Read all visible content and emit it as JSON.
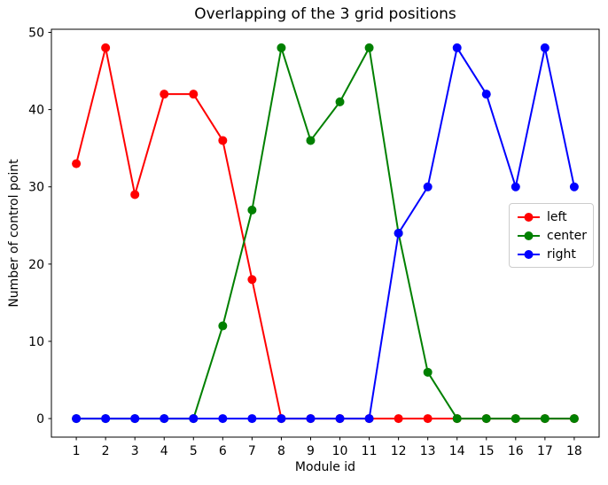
{
  "figure": {
    "background": "#ffffff",
    "text_color": "#000000",
    "spine_color": "#000000",
    "legend_border_color": "#cccccc"
  },
  "chart_data": {
    "type": "line",
    "title": "Overlapping of the 3 grid positions",
    "xlabel": "Module id",
    "ylabel": "Number of control point",
    "x": [
      1,
      2,
      3,
      4,
      5,
      6,
      7,
      8,
      9,
      10,
      11,
      12,
      13,
      14,
      15,
      16,
      17,
      18
    ],
    "series": [
      {
        "name": "left",
        "color": "#ff0000",
        "values": [
          33,
          48,
          29,
          42,
          42,
          36,
          18,
          0,
          0,
          0,
          0,
          0,
          0,
          0,
          0,
          0,
          0,
          0
        ]
      },
      {
        "name": "center",
        "color": "#008000",
        "values": [
          0,
          0,
          0,
          0,
          0,
          12,
          27,
          48,
          36,
          41,
          48,
          24,
          6,
          0,
          0,
          0,
          0,
          0
        ]
      },
      {
        "name": "right",
        "color": "#0000ff",
        "values": [
          0,
          0,
          0,
          0,
          0,
          0,
          0,
          0,
          0,
          0,
          0,
          24,
          30,
          48,
          42,
          30,
          48,
          30
        ]
      }
    ],
    "xticks": [
      1,
      2,
      3,
      4,
      5,
      6,
      7,
      8,
      9,
      10,
      11,
      12,
      13,
      14,
      15,
      16,
      17,
      18
    ],
    "yticks": [
      0,
      10,
      20,
      30,
      40,
      50
    ],
    "xlim": [
      0.15,
      18.85
    ],
    "ylim": [
      -2.4,
      50.4
    ],
    "grid": false,
    "marker": "o",
    "marker_radius": 5,
    "line_width": 2,
    "legend": {
      "position": "center-right",
      "entries": [
        "left",
        "center",
        "right"
      ]
    }
  }
}
